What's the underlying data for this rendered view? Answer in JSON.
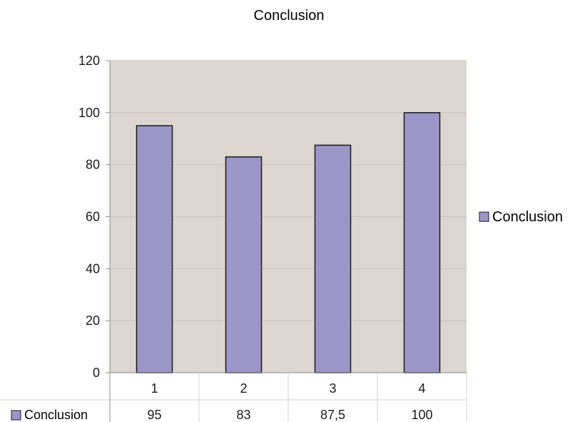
{
  "chart_data": {
    "type": "bar",
    "title": "Conclusion",
    "categories": [
      "1",
      "2",
      "3",
      "4"
    ],
    "series": [
      {
        "name": "Conclusion",
        "values": [
          95,
          83,
          87.5,
          100
        ]
      }
    ],
    "data_table": {
      "row_label": "Conclusion",
      "cells": [
        "95",
        "83",
        "87,5",
        "100"
      ]
    },
    "ylim": [
      0,
      120
    ],
    "y_ticks": [
      "0",
      "20",
      "40",
      "60",
      "80",
      "100",
      "120"
    ],
    "grid": true,
    "legend": {
      "position": "right",
      "label": "Conclusion"
    },
    "colors": {
      "bar_fill": "#9c96c8",
      "bar_stroke": "#1a1a1a",
      "plot_background": "#dcd5d0",
      "gridline": "#c8c1bc",
      "axis": "#8c8c8c",
      "table_lines": "#d0d0d0"
    }
  }
}
